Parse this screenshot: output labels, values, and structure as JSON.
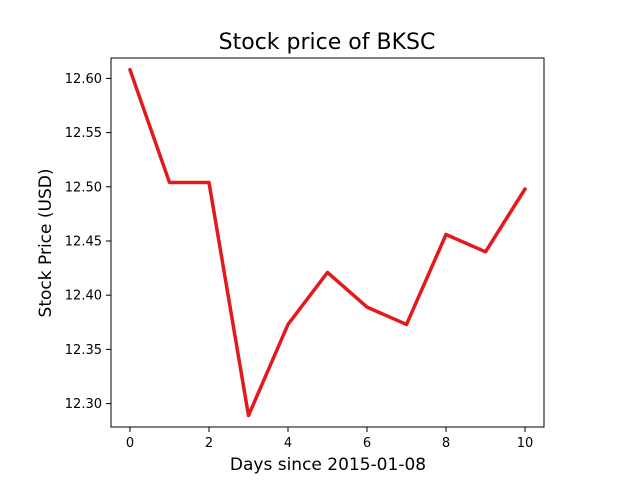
{
  "chart_data": {
    "type": "line",
    "title": "Stock price of BKSC",
    "xlabel": "Days since 2015-01-08",
    "ylabel": "Stock Price (USD)",
    "x": [
      0,
      1,
      2,
      3,
      4,
      5,
      6,
      7,
      8,
      9,
      10
    ],
    "series": [
      {
        "values": [
          12.608,
          12.504,
          12.504,
          12.289,
          12.373,
          12.421,
          12.389,
          12.373,
          12.456,
          12.44,
          12.498
        ],
        "color": "#e31a1c"
      }
    ],
    "xlim": [
      -0.48,
      10.48
    ],
    "ylim": [
      12.2784,
      12.6188
    ],
    "xticks": [
      0,
      2,
      4,
      6,
      8,
      10
    ],
    "yticks": [
      12.3,
      12.35,
      12.4,
      12.45,
      12.5,
      12.55,
      12.6
    ],
    "ytick_labels": [
      "12.30",
      "12.35",
      "12.40",
      "12.45",
      "12.50",
      "12.55",
      "12.60"
    ],
    "xtick_labels": [
      "0",
      "2",
      "4",
      "6",
      "8",
      "10"
    ],
    "grid": false,
    "legend": "none"
  }
}
